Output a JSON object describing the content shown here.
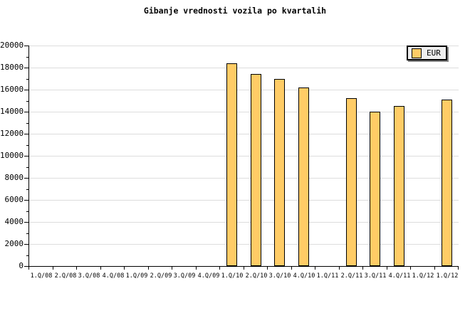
{
  "page": {
    "background": "#ffffff"
  },
  "chart_data": {
    "type": "bar",
    "title": "Gibanje vrednosti vozila po kvartalih",
    "categories": [
      "1.Q/08",
      "2.Q/08",
      "3.Q/08",
      "4.Q/08",
      "1.Q/09",
      "2.Q/09",
      "3.Q/09",
      "4.Q/09",
      "1.Q/10",
      "2.Q/10",
      "3.Q/10",
      "4.Q/10",
      "1.Q/11",
      "2.Q/11",
      "3.Q/11",
      "4.Q/11",
      "1.Q/12",
      "1.Q/12"
    ],
    "series": [
      {
        "name": "EUR",
        "values": [
          null,
          null,
          null,
          null,
          null,
          null,
          null,
          null,
          18400,
          17450,
          17000,
          16200,
          null,
          15200,
          14000,
          14500,
          null,
          15100
        ]
      }
    ],
    "xlabel": "",
    "ylabel": "",
    "ylim": [
      0,
      20000
    ],
    "ytick_interval": 2000,
    "ytick_minor_interval": 1000,
    "ytick_labels": [
      "0",
      "2000",
      "4000",
      "6000",
      "8000",
      "10000",
      "12000",
      "14000",
      "16000",
      "18000",
      "20000"
    ],
    "grid": "horizontal-major",
    "legend": {
      "label": "EUR",
      "position": "top-right"
    },
    "colors": {
      "bar_fill": "#ffcc66",
      "bar_border": "#000000",
      "gridline": "#dddddd",
      "axis": "#000000",
      "legend_bg": "#eeeeee",
      "legend_shadow": "#888888",
      "text": "#000000"
    }
  }
}
